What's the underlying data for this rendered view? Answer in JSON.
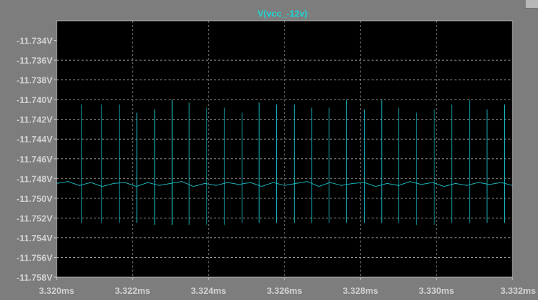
{
  "window": {
    "close_icon": "window-corner-icon"
  },
  "colors": {
    "background": "#000000",
    "frame": "#7d7d7d",
    "grid": "#9a9a9a",
    "trace": "#19b8c0",
    "title": "#1fd3d3",
    "labels": "#d0d0d0"
  },
  "chart_data": {
    "type": "line",
    "title": "V(vcc_-12v)",
    "xlabel": "",
    "ylabel": "",
    "grid": true,
    "xlim": [
      3.32,
      3.332
    ],
    "ylim": [
      -11.758,
      -11.732
    ],
    "x_ticks": [
      3.32,
      3.322,
      3.324,
      3.326,
      3.328,
      3.33,
      3.332
    ],
    "x_tick_labels": [
      "3.320ms",
      "3.322ms",
      "3.324ms",
      "3.326ms",
      "3.328ms",
      "3.330ms",
      "3.332ms"
    ],
    "y_ticks": [
      -11.734,
      -11.736,
      -11.738,
      -11.74,
      -11.742,
      -11.744,
      -11.746,
      -11.748,
      -11.75,
      -11.752,
      -11.754,
      -11.756,
      -11.758
    ],
    "y_tick_labels": [
      "-11.734V",
      "-11.736V",
      "-11.738V",
      "-11.740V",
      "-11.742V",
      "-11.744V",
      "-11.746V",
      "-11.748V",
      "-11.750V",
      "-11.752V",
      "-11.754V",
      "-11.756V",
      "-11.758V"
    ],
    "series": [
      {
        "baseline_x": [
          3.32,
          3.3203,
          3.3206,
          3.3209,
          3.3212,
          3.3215,
          3.3218,
          3.3221,
          3.3224,
          3.3227,
          3.323,
          3.3233,
          3.3236,
          3.3239,
          3.3242,
          3.3245,
          3.3248,
          3.3251,
          3.3254,
          3.3257,
          3.326,
          3.3263,
          3.3266,
          3.3269,
          3.3272,
          3.3275,
          3.3278,
          3.3281,
          3.3284,
          3.3287,
          3.329,
          3.3293,
          3.3296,
          3.3299,
          3.3302,
          3.3305,
          3.3308,
          3.3311,
          3.3314,
          3.3317,
          3.332
        ],
        "baseline_y": [
          -11.7485,
          -11.7483,
          -11.7487,
          -11.7484,
          -11.7488,
          -11.7485,
          -11.7484,
          -11.7488,
          -11.7484,
          -11.7487,
          -11.7485,
          -11.7483,
          -11.7488,
          -11.7485,
          -11.7487,
          -11.7484,
          -11.7486,
          -11.7484,
          -11.7488,
          -11.7484,
          -11.7487,
          -11.7485,
          -11.7483,
          -11.7488,
          -11.7484,
          -11.7487,
          -11.7485,
          -11.7484,
          -11.7488,
          -11.7485,
          -11.7487,
          -11.7483,
          -11.7486,
          -11.7484,
          -11.7488,
          -11.7485,
          -11.7487,
          -11.7484,
          -11.7486,
          -11.7484,
          -11.7487
        ],
        "spikes": [
          {
            "x": 3.32066,
            "max": -11.7405,
            "min": -11.7525
          },
          {
            "x": 3.32118,
            "max": -11.7405,
            "min": -11.7525
          },
          {
            "x": 3.32165,
            "max": -11.7405,
            "min": -11.7525
          },
          {
            "x": 3.32211,
            "max": -11.7413,
            "min": -11.7525
          },
          {
            "x": 3.32258,
            "max": -11.741,
            "min": -11.7527
          },
          {
            "x": 3.32304,
            "max": -11.74,
            "min": -11.7527
          },
          {
            "x": 3.32349,
            "max": -11.7403,
            "min": -11.7527
          },
          {
            "x": 3.32395,
            "max": -11.7408,
            "min": -11.7527
          },
          {
            "x": 3.32442,
            "max": -11.7408,
            "min": -11.7527
          },
          {
            "x": 3.32488,
            "max": -11.7413,
            "min": -11.7525
          },
          {
            "x": 3.32533,
            "max": -11.7403,
            "min": -11.7525
          },
          {
            "x": 3.32579,
            "max": -11.7405,
            "min": -11.7525
          },
          {
            "x": 3.32626,
            "max": -11.7405,
            "min": -11.7525
          },
          {
            "x": 3.32672,
            "max": -11.7408,
            "min": -11.7525
          },
          {
            "x": 3.32717,
            "max": -11.7408,
            "min": -11.7525
          },
          {
            "x": 3.32763,
            "max": -11.74,
            "min": -11.7525
          },
          {
            "x": 3.3281,
            "max": -11.741,
            "min": -11.7525
          },
          {
            "x": 3.32856,
            "max": -11.74,
            "min": -11.7525
          },
          {
            "x": 3.32901,
            "max": -11.7408,
            "min": -11.7525
          },
          {
            "x": 3.32948,
            "max": -11.7413,
            "min": -11.7527
          },
          {
            "x": 3.32994,
            "max": -11.741,
            "min": -11.7527
          },
          {
            "x": 3.3304,
            "max": -11.7405,
            "min": -11.7525
          },
          {
            "x": 3.33087,
            "max": -11.74,
            "min": -11.7525
          },
          {
            "x": 3.33133,
            "max": -11.741,
            "min": -11.7525
          },
          {
            "x": 3.33179,
            "max": -11.7405,
            "min": -11.7525
          }
        ]
      }
    ]
  }
}
